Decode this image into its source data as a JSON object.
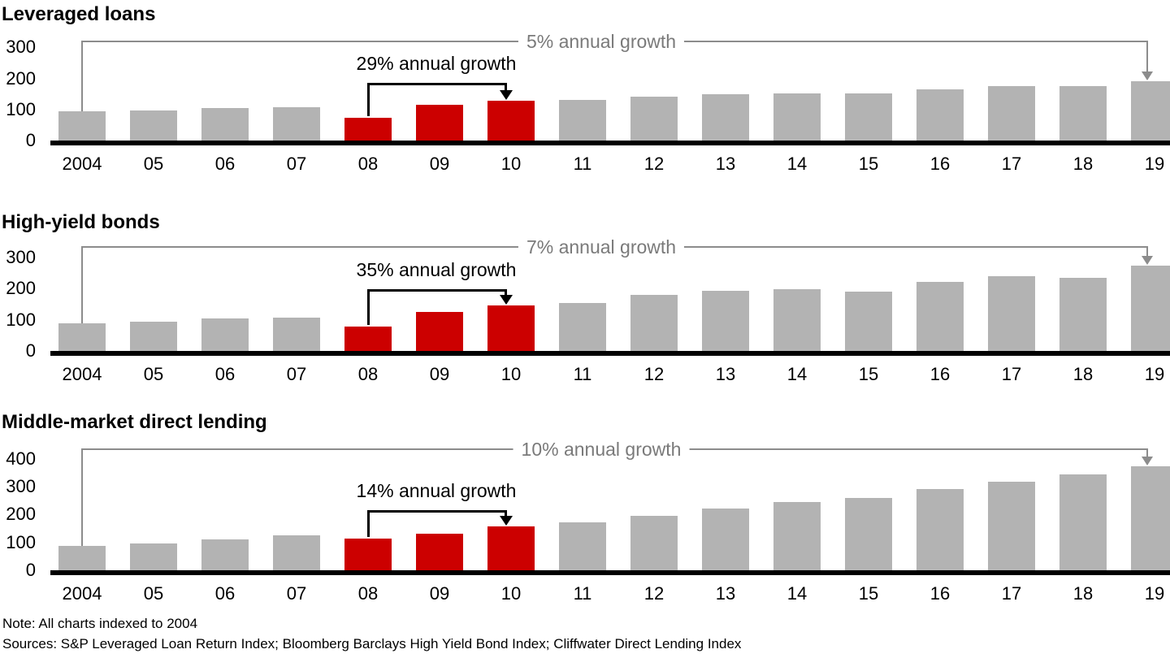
{
  "page": {
    "note": "Note: All charts indexed to 2004",
    "sources": "Sources: S&P Leveraged Loan Return Index; Bloomberg Barclays High Yield Bond Index; Cliffwater Direct Lending Index"
  },
  "colors": {
    "bar_gray": "#b3b3b3",
    "bar_highlight_red": "#cc0000",
    "annotation_text_gray": "#7a7a7a",
    "annotation_line_gray": "#8c8c8c",
    "axis_black": "#000000"
  },
  "chart_data": [
    {
      "type": "bar",
      "title": "Leveraged loans",
      "overall_growth_label": "5% annual growth",
      "highlight_growth_label": "29% annual growth",
      "categories": [
        "2004",
        "05",
        "06",
        "07",
        "08",
        "09",
        "10",
        "11",
        "12",
        "13",
        "14",
        "15",
        "16",
        "17",
        "18",
        "19"
      ],
      "values": [
        93,
        97,
        104,
        108,
        73,
        115,
        127,
        130,
        142,
        150,
        152,
        151,
        166,
        175,
        176,
        192
      ],
      "highlight_indices": [
        4,
        5,
        6
      ],
      "highlight_span": [
        "08",
        "10"
      ],
      "overall_span": [
        "2004",
        "19"
      ],
      "ylim": [
        0,
        300
      ],
      "yticks": [
        0,
        100,
        200,
        300
      ],
      "grid": false,
      "legend": false
    },
    {
      "type": "bar",
      "title": "High-yield bonds",
      "overall_growth_label": "7% annual growth",
      "highlight_growth_label": "35% annual growth",
      "categories": [
        "2004",
        "05",
        "06",
        "07",
        "08",
        "09",
        "10",
        "11",
        "12",
        "13",
        "14",
        "15",
        "16",
        "17",
        "18",
        "19"
      ],
      "values": [
        89,
        93,
        104,
        106,
        78,
        126,
        147,
        153,
        179,
        193,
        198,
        190,
        222,
        240,
        236,
        273
      ],
      "highlight_indices": [
        4,
        5,
        6
      ],
      "highlight_span": [
        "08",
        "10"
      ],
      "overall_span": [
        "2004",
        "19"
      ],
      "ylim": [
        0,
        300
      ],
      "yticks": [
        0,
        100,
        200,
        300
      ],
      "grid": false,
      "legend": false
    },
    {
      "type": "bar",
      "title": "Middle-market direct lending",
      "overall_growth_label": "10% annual growth",
      "highlight_growth_label": "14% annual growth",
      "categories": [
        "2004",
        "05",
        "06",
        "07",
        "08",
        "09",
        "10",
        "11",
        "12",
        "13",
        "14",
        "15",
        "16",
        "17",
        "18",
        "19"
      ],
      "values": [
        88,
        97,
        111,
        124,
        115,
        131,
        156,
        173,
        196,
        223,
        246,
        259,
        292,
        317,
        345,
        372
      ],
      "highlight_indices": [
        4,
        5,
        6
      ],
      "highlight_span": [
        "08",
        "10"
      ],
      "overall_span": [
        "2004",
        "19"
      ],
      "ylim": [
        0,
        400
      ],
      "yticks": [
        0,
        100,
        200,
        300,
        400
      ],
      "grid": false,
      "legend": false
    }
  ]
}
